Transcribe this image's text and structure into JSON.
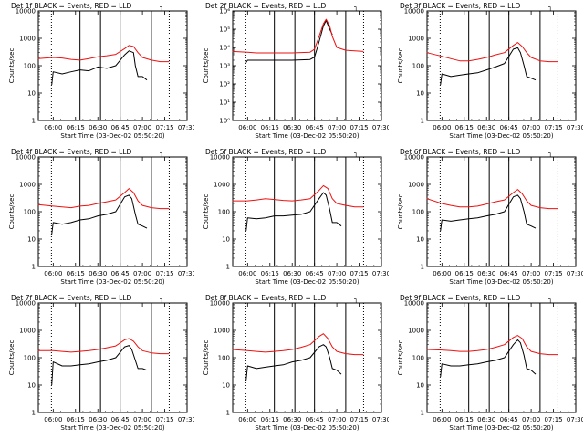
{
  "x_range": [
    5.833,
    7.5
  ],
  "x_ticks": [
    "06:00",
    "06:15",
    "06:30",
    "06:45",
    "07:00",
    "07:15",
    "07:30"
  ],
  "x_label": "Start Time (03-Dec-02 05:50:20)",
  "y_label": "Counts/sec",
  "legend_glyph": "┐",
  "colors": {
    "events": "#000000",
    "lld": "#ee1111"
  },
  "solid_lines_h": [
    6.3,
    6.53,
    6.75,
    7.1
  ],
  "dotted_lines_h": [
    5.98,
    7.3
  ],
  "panels": [
    {
      "title": "Det 1f BLACK = Events, RED = LLD",
      "ylim": [
        1,
        10000
      ],
      "yticks": [
        "1",
        "10",
        "100",
        "1000",
        "10000"
      ],
      "chart_data": {
        "type": "line",
        "series": [
          {
            "name": "Events",
            "x": [
              5.983,
              6.0,
              6.1,
              6.2,
              6.3,
              6.4,
              6.5,
              6.6,
              6.7,
              6.8,
              6.85,
              6.9,
              6.92,
              6.95,
              7.0,
              7.05
            ],
            "y": [
              20,
              60,
              50,
              60,
              70,
              65,
              90,
              80,
              100,
              250,
              350,
              300,
              100,
              40,
              40,
              30
            ]
          },
          {
            "name": "LLD",
            "x": [
              5.83,
              6.0,
              6.1,
              6.2,
              6.3,
              6.4,
              6.5,
              6.6,
              6.7,
              6.8,
              6.85,
              6.9,
              6.95,
              7.0,
              7.1,
              7.2,
              7.3
            ],
            "y": [
              180,
              200,
              190,
              170,
              160,
              180,
              210,
              230,
              260,
              420,
              550,
              500,
              300,
              200,
              160,
              140,
              140
            ]
          }
        ]
      }
    },
    {
      "title": "Det 2f BLACK = Events, RED = LLD",
      "ylim": [
        1,
        1000000
      ],
      "yticks": [
        "10⁰",
        "10¹",
        "10²",
        "10³",
        "10⁴",
        "10⁵",
        "10⁶"
      ],
      "chart_data": {
        "type": "line",
        "series": [
          {
            "name": "Events",
            "x": [
              5.983,
              6.0,
              6.1,
              6.3,
              6.5,
              6.7,
              6.75,
              6.8,
              6.85,
              6.88,
              6.92,
              6.95
            ],
            "y": [
              1500,
              2000,
              2000,
              2000,
              2000,
              2200,
              3000,
              20000,
              150000,
              300000,
              100000,
              50000
            ]
          },
          {
            "name": "LLD",
            "x": [
              5.83,
              6.0,
              6.1,
              6.3,
              6.5,
              6.7,
              6.75,
              6.8,
              6.85,
              6.88,
              6.92,
              6.95,
              7.0,
              7.1,
              7.3
            ],
            "y": [
              6000,
              5500,
              5000,
              5000,
              5000,
              5500,
              8000,
              40000,
              200000,
              350000,
              150000,
              40000,
              10000,
              7000,
              6000
            ]
          }
        ]
      }
    },
    {
      "title": "Det 3f BLACK = Events, RED = LLD",
      "ylim": [
        1,
        10000
      ],
      "yticks": [
        "1",
        "10",
        "100",
        "1000",
        "10000"
      ],
      "chart_data": {
        "type": "line",
        "series": [
          {
            "name": "Events",
            "x": [
              5.983,
              6.0,
              6.1,
              6.2,
              6.3,
              6.4,
              6.5,
              6.6,
              6.7,
              6.8,
              6.85,
              6.88,
              6.92,
              6.95,
              7.0,
              7.05
            ],
            "y": [
              20,
              50,
              40,
              45,
              50,
              55,
              70,
              90,
              120,
              400,
              450,
              300,
              100,
              40,
              35,
              30
            ]
          },
          {
            "name": "LLD",
            "x": [
              5.83,
              6.0,
              6.1,
              6.2,
              6.3,
              6.4,
              6.5,
              6.6,
              6.7,
              6.8,
              6.85,
              6.9,
              6.95,
              7.0,
              7.1,
              7.2,
              7.3
            ],
            "y": [
              300,
              220,
              180,
              150,
              150,
              170,
              200,
              250,
              300,
              550,
              700,
              500,
              300,
              200,
              150,
              140,
              140
            ]
          }
        ]
      }
    },
    {
      "title": "Det 4f BLACK = Events, RED = LLD",
      "ylim": [
        1,
        10000
      ],
      "yticks": [
        "1",
        "10",
        "100",
        "1000",
        "10000"
      ],
      "chart_data": {
        "type": "line",
        "series": [
          {
            "name": "Events",
            "x": [
              5.983,
              6.0,
              6.1,
              6.2,
              6.3,
              6.4,
              6.5,
              6.6,
              6.7,
              6.8,
              6.85,
              6.88,
              6.92,
              6.95,
              7.0,
              7.05
            ],
            "y": [
              15,
              40,
              35,
              40,
              50,
              55,
              70,
              80,
              100,
              350,
              400,
              300,
              80,
              35,
              30,
              25
            ]
          },
          {
            "name": "LLD",
            "x": [
              5.83,
              6.0,
              6.1,
              6.2,
              6.3,
              6.4,
              6.5,
              6.6,
              6.7,
              6.8,
              6.85,
              6.9,
              6.95,
              7.0,
              7.1,
              7.2,
              7.3
            ],
            "y": [
              180,
              160,
              150,
              140,
              160,
              170,
              200,
              230,
              270,
              500,
              700,
              500,
              250,
              170,
              140,
              130,
              130
            ]
          }
        ]
      }
    },
    {
      "title": "Det 5f BLACK = Events, RED = LLD",
      "ylim": [
        1,
        10000
      ],
      "yticks": [
        "1",
        "10",
        "100",
        "1000",
        "10000"
      ],
      "chart_data": {
        "type": "line",
        "series": [
          {
            "name": "Events",
            "x": [
              5.983,
              6.0,
              6.1,
              6.2,
              6.3,
              6.4,
              6.5,
              6.6,
              6.7,
              6.8,
              6.85,
              6.88,
              6.92,
              6.95,
              7.0,
              7.05
            ],
            "y": [
              20,
              60,
              55,
              60,
              70,
              70,
              75,
              80,
              100,
              300,
              500,
              400,
              120,
              40,
              40,
              30
            ]
          },
          {
            "name": "LLD",
            "x": [
              5.83,
              6.0,
              6.1,
              6.2,
              6.3,
              6.4,
              6.5,
              6.6,
              6.7,
              6.8,
              6.85,
              6.9,
              6.95,
              7.0,
              7.1,
              7.2,
              7.3
            ],
            "y": [
              250,
              250,
              270,
              300,
              280,
              260,
              250,
              270,
              300,
              600,
              900,
              700,
              300,
              200,
              170,
              150,
              150
            ]
          }
        ]
      }
    },
    {
      "title": "Det 6f BLACK = Events, RED = LLD",
      "ylim": [
        1,
        10000
      ],
      "yticks": [
        "1",
        "10",
        "100",
        "1000",
        "10000"
      ],
      "chart_data": {
        "type": "line",
        "series": [
          {
            "name": "Events",
            "x": [
              5.983,
              6.0,
              6.1,
              6.2,
              6.3,
              6.4,
              6.5,
              6.6,
              6.7,
              6.8,
              6.85,
              6.88,
              6.92,
              6.95,
              7.0,
              7.05
            ],
            "y": [
              20,
              50,
              45,
              50,
              55,
              60,
              70,
              80,
              100,
              350,
              400,
              300,
              100,
              35,
              30,
              25
            ]
          },
          {
            "name": "LLD",
            "x": [
              5.83,
              6.0,
              6.1,
              6.2,
              6.3,
              6.4,
              6.5,
              6.6,
              6.7,
              6.8,
              6.85,
              6.9,
              6.95,
              7.0,
              7.1,
              7.2,
              7.3
            ],
            "y": [
              300,
              200,
              170,
              150,
              150,
              160,
              190,
              230,
              270,
              500,
              650,
              450,
              250,
              170,
              140,
              130,
              130
            ]
          }
        ]
      }
    },
    {
      "title": "Det 7f BLACK = Events, RED = LLD",
      "ylim": [
        1,
        10000
      ],
      "yticks": [
        "1",
        "10",
        "100",
        "1000",
        "10000"
      ],
      "chart_data": {
        "type": "line",
        "series": [
          {
            "name": "Events",
            "x": [
              5.983,
              6.0,
              6.1,
              6.2,
              6.3,
              6.4,
              6.5,
              6.6,
              6.7,
              6.8,
              6.85,
              6.88,
              6.92,
              6.95,
              7.0,
              7.05
            ],
            "y": [
              10,
              70,
              50,
              50,
              55,
              60,
              70,
              80,
              100,
              250,
              280,
              200,
              80,
              40,
              40,
              35
            ]
          },
          {
            "name": "LLD",
            "x": [
              5.83,
              6.0,
              6.1,
              6.2,
              6.3,
              6.4,
              6.5,
              6.6,
              6.7,
              6.8,
              6.85,
              6.9,
              6.95,
              7.0,
              7.1,
              7.2,
              7.3
            ],
            "y": [
              180,
              180,
              170,
              160,
              170,
              180,
              200,
              230,
              270,
              450,
              500,
              400,
              250,
              180,
              150,
              140,
              140
            ]
          }
        ]
      }
    },
    {
      "title": "Det 8f BLACK = Events, RED = LLD",
      "ylim": [
        1,
        10000
      ],
      "yticks": [
        "1",
        "10",
        "100",
        "1000",
        "10000"
      ],
      "chart_data": {
        "type": "line",
        "series": [
          {
            "name": "Events",
            "x": [
              5.983,
              6.0,
              6.1,
              6.2,
              6.3,
              6.4,
              6.5,
              6.6,
              6.7,
              6.8,
              6.85,
              6.88,
              6.92,
              6.95,
              7.0,
              7.05
            ],
            "y": [
              15,
              50,
              40,
              45,
              50,
              55,
              70,
              80,
              100,
              250,
              300,
              250,
              100,
              40,
              35,
              25
            ]
          },
          {
            "name": "LLD",
            "x": [
              5.83,
              6.0,
              6.1,
              6.2,
              6.3,
              6.4,
              6.5,
              6.6,
              6.7,
              6.8,
              6.85,
              6.9,
              6.95,
              7.0,
              7.1,
              7.2,
              7.3
            ],
            "y": [
              200,
              180,
              170,
              160,
              170,
              180,
              200,
              240,
              300,
              600,
              750,
              500,
              250,
              170,
              140,
              130,
              130
            ]
          }
        ]
      }
    },
    {
      "title": "Det 9f BLACK = Events, RED = LLD",
      "ylim": [
        1,
        10000
      ],
      "yticks": [
        "1",
        "10",
        "100",
        "1000",
        "10000"
      ],
      "chart_data": {
        "type": "line",
        "series": [
          {
            "name": "Events",
            "x": [
              5.983,
              6.0,
              6.1,
              6.2,
              6.3,
              6.4,
              6.5,
              6.6,
              6.7,
              6.8,
              6.85,
              6.88,
              6.92,
              6.95,
              7.0,
              7.05
            ],
            "y": [
              20,
              60,
              50,
              50,
              55,
              60,
              70,
              80,
              100,
              300,
              450,
              350,
              120,
              40,
              35,
              25
            ]
          },
          {
            "name": "LLD",
            "x": [
              5.83,
              6.0,
              6.1,
              6.2,
              6.3,
              6.4,
              6.5,
              6.6,
              6.7,
              6.8,
              6.85,
              6.9,
              6.95,
              7.0,
              7.1,
              7.2,
              7.3
            ],
            "y": [
              200,
              190,
              180,
              170,
              170,
              180,
              200,
              240,
              300,
              550,
              650,
              500,
              250,
              170,
              140,
              130,
              130
            ]
          }
        ]
      }
    }
  ]
}
